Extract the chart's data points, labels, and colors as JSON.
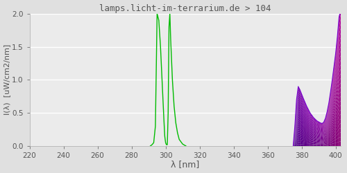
{
  "title": "lamps.licht-im-terrarium.de > 104",
  "xlabel": "λ [nm]",
  "ylabel": "I(λ)  [uW/cm2/nm]",
  "xlim": [
    220,
    403
  ],
  "ylim": [
    0,
    2.0
  ],
  "yticks": [
    0.0,
    0.5,
    1.0,
    1.5,
    2.0
  ],
  "xticks": [
    220,
    240,
    260,
    280,
    300,
    320,
    340,
    360,
    380,
    400
  ],
  "bg_color": "#e0e0e0",
  "plot_bg_color": "#ebebeb",
  "title_color": "#555555",
  "tick_color": "#555555",
  "line_color": "#00bb00",
  "grid_color": "#ffffff",
  "green_wl": [
    291.0,
    292.0,
    293.0,
    294.0,
    295.0,
    296.0,
    297.0,
    298.0,
    299.0,
    299.5,
    300.0,
    300.5,
    301.0,
    301.5,
    302.0,
    302.5,
    303.0,
    304.0,
    305.0,
    306.0,
    307.0,
    308.0,
    310.0,
    312.0
  ],
  "green_val": [
    0.0,
    0.02,
    0.05,
    0.3,
    2.0,
    1.9,
    1.5,
    0.95,
    0.4,
    0.15,
    0.05,
    0.02,
    0.02,
    0.5,
    1.8,
    2.0,
    1.6,
    1.0,
    0.6,
    0.35,
    0.2,
    0.1,
    0.03,
    0.0
  ],
  "violet_wl": [
    375.0,
    376.0,
    377.0,
    378.0,
    379.0,
    381.0,
    383.0,
    385.0,
    387.0,
    389.0,
    391.0,
    392.0,
    393.0,
    394.0,
    395.0,
    396.0,
    397.0,
    398.0,
    399.0,
    400.0,
    401.0,
    402.0,
    403.0
  ],
  "violet_val": [
    0.0,
    0.3,
    0.7,
    0.9,
    0.85,
    0.72,
    0.6,
    0.5,
    0.43,
    0.38,
    0.35,
    0.34,
    0.36,
    0.42,
    0.52,
    0.65,
    0.82,
    1.0,
    1.2,
    1.4,
    1.65,
    1.95,
    2.05
  ],
  "violet_colors_bottom": [
    "#3d006e",
    "#3d006e",
    "#450078",
    "#4a0082",
    "#4a0082",
    "#4a0082",
    "#4a0082",
    "#4a0082",
    "#4a0082",
    "#4a0082",
    "#4a0082",
    "#4a0082",
    "#4a0082",
    "#4a0082",
    "#4a0082",
    "#4a0082",
    "#4a0082",
    "#4a0082",
    "#4a0082",
    "#4a0082",
    "#4a0082",
    "#4a0082",
    "#4a0082"
  ],
  "violet_color_fill": "#6600aa"
}
